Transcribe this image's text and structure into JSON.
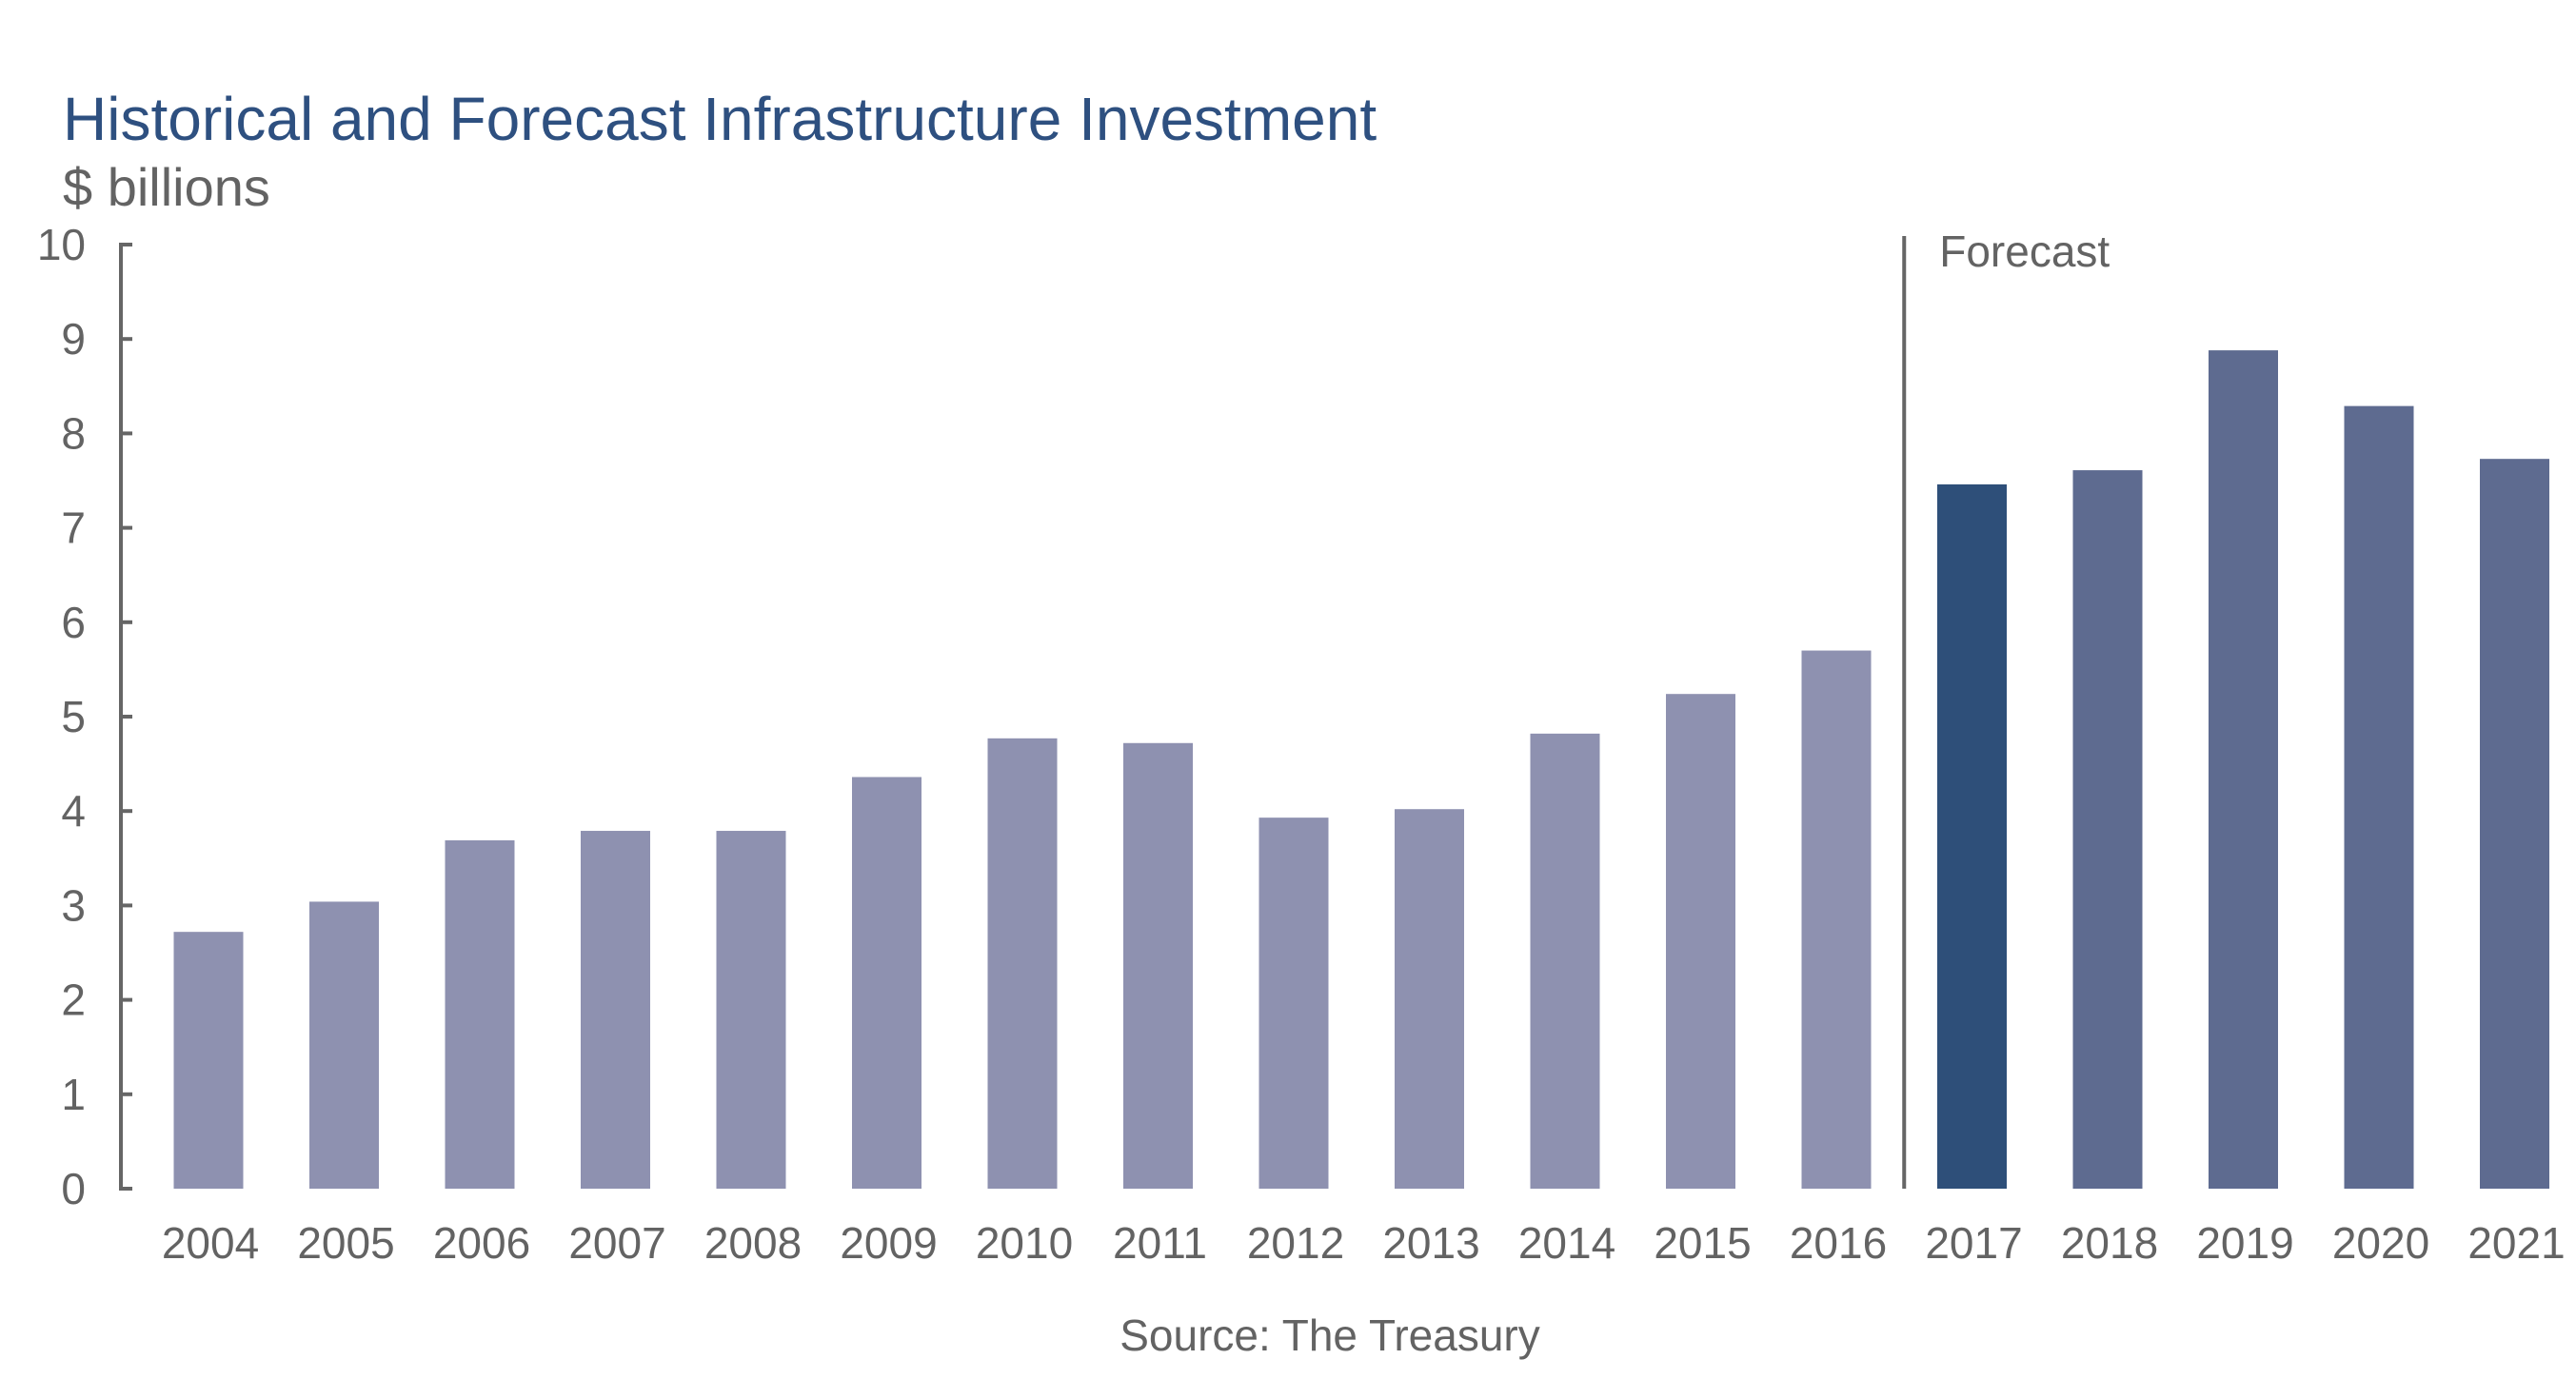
{
  "chart_data": {
    "type": "bar",
    "title": "Historical and Forecast Infrastructure Investment",
    "subtitle": "$ billions",
    "xlabel": "",
    "ylabel": "",
    "ylim": [
      0,
      10
    ],
    "yticks": [
      "0",
      "1",
      "2",
      "3",
      "4",
      "5",
      "6",
      "7",
      "8",
      "9",
      "10"
    ],
    "grid": false,
    "categories": [
      "2004",
      "2005",
      "2006",
      "2007",
      "2008",
      "2009",
      "2010",
      "2011",
      "2012",
      "2013",
      "2014",
      "2015",
      "2016",
      "2017",
      "2018",
      "2019",
      "2020",
      "2021"
    ],
    "values": [
      2.72,
      3.04,
      3.69,
      3.79,
      3.79,
      4.36,
      4.77,
      4.72,
      3.93,
      4.02,
      4.82,
      5.24,
      5.7,
      7.46,
      7.61,
      8.88,
      8.29,
      7.73
    ],
    "annotation": {
      "label": "Forecast",
      "between": [
        "2016",
        "2017"
      ]
    },
    "source": "Source: The Treasury",
    "colors": {
      "historical": "#8e91b0",
      "current_year": "#2e4f79",
      "forecast": "#5e6b90",
      "title": "#2e5080",
      "text": "#636363",
      "axis": "#666666"
    }
  }
}
